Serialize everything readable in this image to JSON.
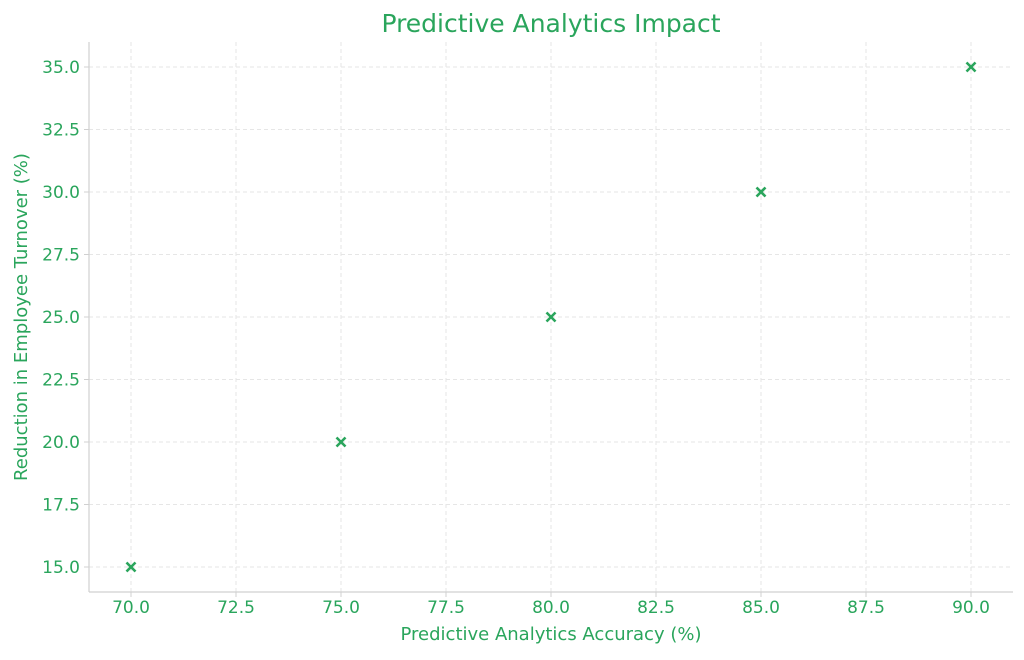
{
  "chart_data": {
    "type": "scatter",
    "title": "Predictive Analytics Impact",
    "xlabel": "Predictive Analytics Accuracy (%)",
    "ylabel": "Reduction in Employee Turnover (%)",
    "x": [
      70,
      75,
      80,
      85,
      90
    ],
    "y": [
      15,
      20,
      25,
      30,
      35
    ],
    "xlim": [
      69,
      91
    ],
    "ylim": [
      14,
      36
    ],
    "x_ticks": [
      "70.0",
      "72.5",
      "75.0",
      "77.5",
      "80.0",
      "82.5",
      "85.0",
      "87.5",
      "90.0"
    ],
    "y_ticks": [
      "15.0",
      "17.5",
      "20.0",
      "22.5",
      "25.0",
      "27.5",
      "30.0",
      "32.5",
      "35.0"
    ],
    "x_tick_values": [
      70,
      72.5,
      75,
      77.5,
      80,
      82.5,
      85,
      87.5,
      90
    ],
    "y_tick_values": [
      15,
      17.5,
      20,
      22.5,
      25,
      27.5,
      30,
      32.5,
      35
    ],
    "marker": "x",
    "grid": true,
    "colors": {
      "accent": "#2aa55c",
      "grid": "#e6e6e6",
      "axis": "#d0d0d0"
    }
  }
}
